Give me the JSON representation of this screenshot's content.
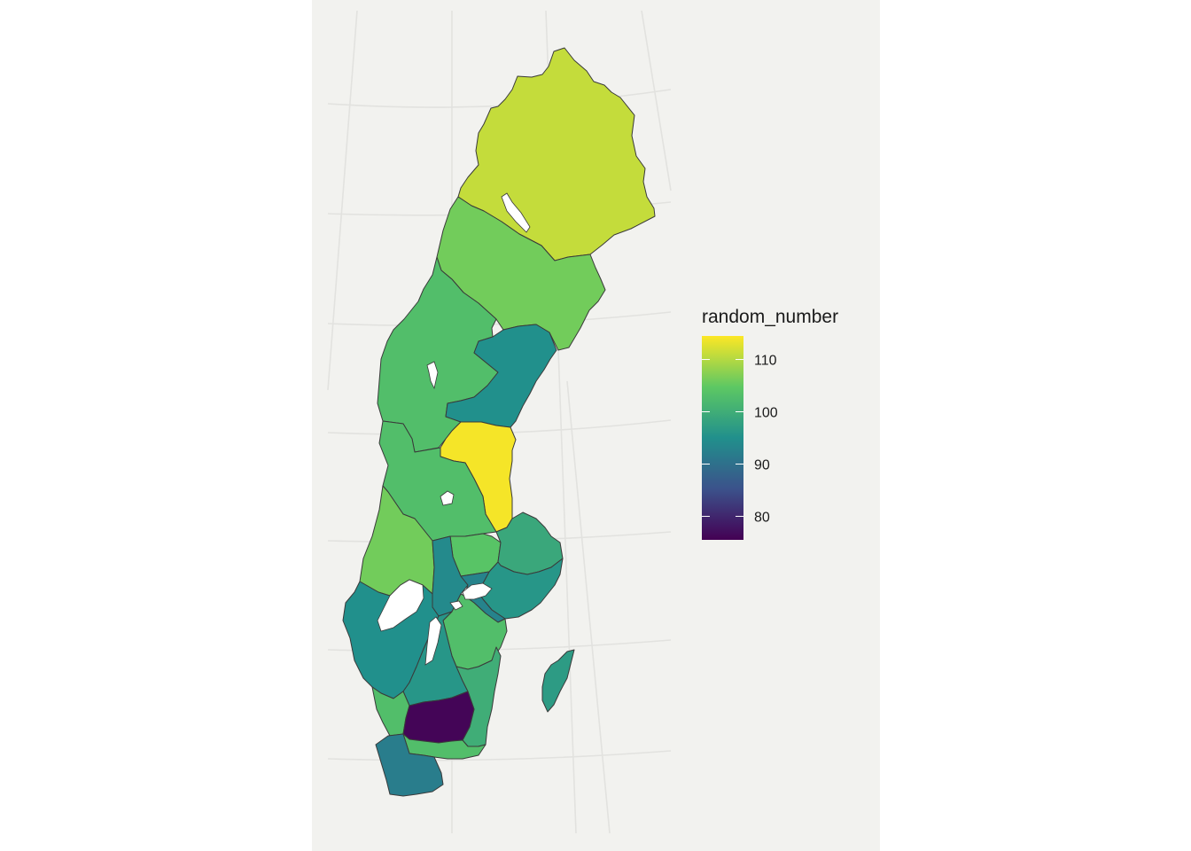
{
  "legend": {
    "title": "random_number",
    "min": 75.5,
    "max": 114.5,
    "ticks": [
      {
        "value": 110,
        "label": "110"
      },
      {
        "value": 100,
        "label": "100"
      },
      {
        "value": 90,
        "label": "90"
      },
      {
        "value": 80,
        "label": "80"
      }
    ]
  },
  "colors": {
    "panel_background": "#f2f2ef",
    "graticule": "#e2e2df",
    "border": "#3a3a3a",
    "lake": "#ffffff",
    "viridis": [
      "#440154",
      "#3b528b",
      "#21908c",
      "#5dc863",
      "#fde725"
    ]
  },
  "chart_data": {
    "type": "choropleth",
    "fill_variable": "random_number",
    "color_scale": "viridis",
    "regions": [
      {
        "id": "norrbotten",
        "value": 111
      },
      {
        "id": "vasterbotten",
        "value": 106
      },
      {
        "id": "jamtland",
        "value": 103
      },
      {
        "id": "vasternorrland",
        "value": 95
      },
      {
        "id": "gavleborg",
        "value": 114
      },
      {
        "id": "dalarna",
        "value": 103
      },
      {
        "id": "varmland",
        "value": 106
      },
      {
        "id": "vastmanland",
        "value": 104
      },
      {
        "id": "uppsala",
        "value": 99
      },
      {
        "id": "stockholm",
        "value": 96
      },
      {
        "id": "orebro",
        "value": 94
      },
      {
        "id": "sodermanland",
        "value": 93
      },
      {
        "id": "vastra-gotaland",
        "value": 95
      },
      {
        "id": "ostergotland",
        "value": 103
      },
      {
        "id": "jonkoping",
        "value": 96
      },
      {
        "id": "kalmar",
        "value": 100
      },
      {
        "id": "gotland",
        "value": 97
      },
      {
        "id": "halland",
        "value": 103
      },
      {
        "id": "kronoberg",
        "value": 76
      },
      {
        "id": "blekinge",
        "value": 103
      },
      {
        "id": "skane",
        "value": 92
      }
    ]
  }
}
